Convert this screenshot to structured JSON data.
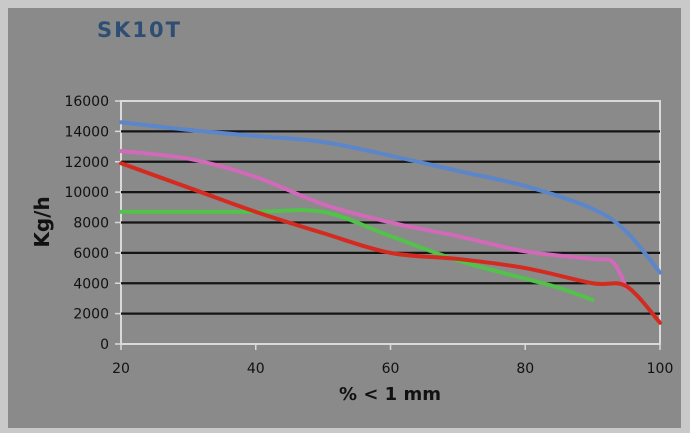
{
  "chart_data": {
    "type": "line",
    "title": "SK10T",
    "xlabel": "% < 1 mm",
    "ylabel": "Kg/h",
    "xlim": [
      20,
      100
    ],
    "ylim": [
      0,
      16000
    ],
    "x_ticks": [
      "20",
      "40",
      "60",
      "80",
      "100"
    ],
    "y_ticks": [
      "0",
      "2000",
      "4000",
      "6000",
      "8000",
      "10000",
      "12000",
      "14000",
      "16000"
    ],
    "x_tick_values": [
      20,
      40,
      60,
      80,
      100
    ],
    "y_tick_values": [
      0,
      2000,
      4000,
      6000,
      8000,
      10000,
      12000,
      14000,
      16000
    ],
    "grid": true,
    "legend": "none",
    "series": [
      {
        "color": "#5b86c9",
        "x": [
          20,
          30,
          40,
          50,
          60,
          70,
          80,
          90,
          95,
          100
        ],
        "y": [
          14600,
          14100,
          13700,
          13300,
          12400,
          11400,
          10400,
          8900,
          7400,
          4700
        ]
      },
      {
        "color": "#d269b9",
        "x": [
          20,
          30,
          40,
          50,
          60,
          70,
          80,
          90,
          93,
          95
        ],
        "y": [
          12700,
          12200,
          11000,
          9200,
          8000,
          7100,
          6100,
          5600,
          5400,
          3700
        ]
      },
      {
        "color": "#52c24a",
        "x": [
          20,
          30,
          40,
          50,
          60,
          70,
          80,
          85,
          90
        ],
        "y": [
          8700,
          8700,
          8700,
          8700,
          7100,
          5500,
          4300,
          3700,
          2900
        ]
      },
      {
        "color": "#d42b20",
        "x": [
          20,
          30,
          40,
          50,
          60,
          70,
          80,
          90,
          95,
          100
        ],
        "y": [
          11900,
          10300,
          8700,
          7300,
          6000,
          5600,
          5000,
          4000,
          3800,
          1400
        ]
      }
    ]
  }
}
